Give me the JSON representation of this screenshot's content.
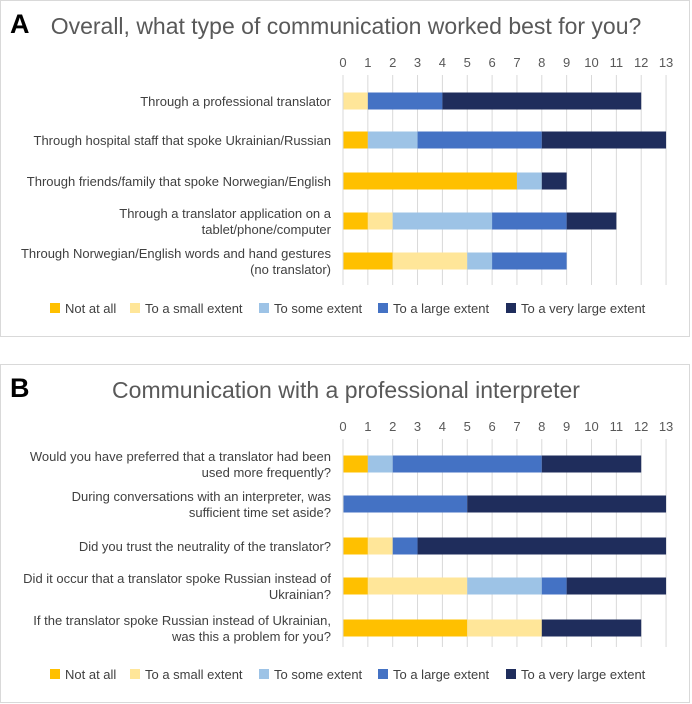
{
  "chart_data": [
    {
      "panel_label": "A",
      "type": "bar",
      "orientation": "horizontal",
      "stacked": true,
      "title": "Overall, what type of communication worked best for you?",
      "xlim": [
        0,
        13
      ],
      "xticks": [
        "0",
        "1",
        "2",
        "3",
        "4",
        "5",
        "6",
        "7",
        "8",
        "9",
        "10",
        "11",
        "12",
        "13"
      ],
      "categories": [
        [
          "Through a professional translator"
        ],
        [
          "Through hospital staff that spoke Ukrainian/Russian"
        ],
        [
          "Through friends/family that spoke Norwegian/English"
        ],
        [
          "Through a translator application on a",
          "tablet/phone/computer"
        ],
        [
          "Through Norwegian/English words and hand gestures",
          "(no translator)"
        ]
      ],
      "series": [
        {
          "name": "Not at all",
          "color": "#FFC000",
          "values": [
            0,
            1,
            7,
            1,
            2
          ]
        },
        {
          "name": "To a small extent",
          "color": "#FFE699",
          "values": [
            1,
            0,
            0,
            1,
            3
          ]
        },
        {
          "name": "To some extent",
          "color": "#9DC3E6",
          "values": [
            0,
            2,
            1,
            4,
            1
          ]
        },
        {
          "name": "To a large extent",
          "color": "#4472C4",
          "values": [
            3,
            5,
            0,
            3,
            3
          ]
        },
        {
          "name": "To a very large extent",
          "color": "#1F2D5C",
          "values": [
            8,
            5,
            1,
            2,
            0
          ]
        }
      ],
      "legend_position": "bottom"
    },
    {
      "panel_label": "B",
      "type": "bar",
      "orientation": "horizontal",
      "stacked": true,
      "title": "Communication with a professional interpreter",
      "xlim": [
        0,
        13
      ],
      "xticks": [
        "0",
        "1",
        "2",
        "3",
        "4",
        "5",
        "6",
        "7",
        "8",
        "9",
        "10",
        "11",
        "12",
        "13"
      ],
      "categories": [
        [
          "Would you have preferred that a translator had been",
          "used more frequently?"
        ],
        [
          "During conversations with an interpreter, was",
          "sufficient time set aside?"
        ],
        [
          "Did you trust the neutrality of the translator?"
        ],
        [
          "Did it occur that a translator spoke Russian instead of",
          "Ukrainian?"
        ],
        [
          "If the translator spoke Russian instead of Ukrainian,",
          "was this a problem for you?"
        ]
      ],
      "series": [
        {
          "name": "Not at all",
          "color": "#FFC000",
          "values": [
            1,
            0,
            1,
            1,
            5
          ]
        },
        {
          "name": "To a small extent",
          "color": "#FFE699",
          "values": [
            0,
            0,
            1,
            4,
            3
          ]
        },
        {
          "name": "To some extent",
          "color": "#9DC3E6",
          "values": [
            1,
            0,
            0,
            3,
            0
          ]
        },
        {
          "name": "To a large extent",
          "color": "#4472C4",
          "values": [
            6,
            5,
            1,
            1,
            0
          ]
        },
        {
          "name": "To a very large extent",
          "color": "#1F2D5C",
          "values": [
            4,
            8,
            10,
            4,
            4
          ]
        }
      ],
      "legend_position": "bottom"
    }
  ]
}
